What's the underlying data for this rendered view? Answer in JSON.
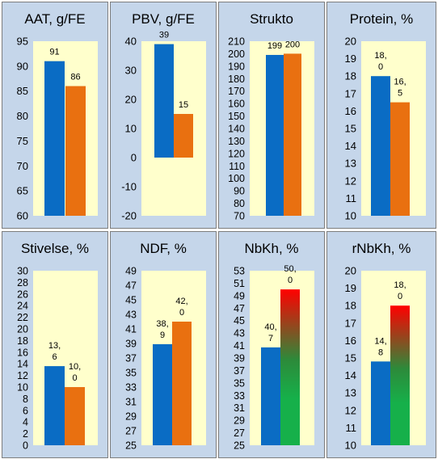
{
  "colors": {
    "panel_bg": "#c5d6ea",
    "plot_bg": "#ffffcc",
    "blue": "#0a6cc4",
    "orange": "#e97010",
    "grad_top": "#ff0000",
    "grad_mid": "#2d8a3a",
    "grad_bottom": "#16b04a"
  },
  "chart_data": [
    {
      "type": "bar",
      "title": "AAT, g/FE",
      "ylim": [
        60,
        95
      ],
      "step": 5,
      "ticks": [
        "60",
        "65",
        "70",
        "75",
        "80",
        "85",
        "90",
        "95"
      ],
      "values": [
        91,
        86
      ],
      "labels": [
        "91",
        "86"
      ]
    },
    {
      "type": "bar",
      "title": "PBV, g/FE",
      "ylim": [
        -20,
        40
      ],
      "step": 10,
      "ticks": [
        "-20",
        "-10",
        "0",
        "10",
        "20",
        "30",
        "40"
      ],
      "values": [
        39,
        15
      ],
      "labels": [
        "39",
        "15"
      ]
    },
    {
      "type": "bar",
      "title": "Strukto",
      "ylim": [
        70,
        210
      ],
      "step": 10,
      "ticks": [
        "70",
        "80",
        "90",
        "100",
        "110",
        "120",
        "130",
        "140",
        "150",
        "160",
        "170",
        "180",
        "190",
        "200",
        "210"
      ],
      "values": [
        199,
        200
      ],
      "labels": [
        "199",
        "200"
      ]
    },
    {
      "type": "bar",
      "title": "Protein, %",
      "ylim": [
        10,
        20
      ],
      "step": 1,
      "ticks": [
        "10",
        "11",
        "12",
        "13",
        "14",
        "15",
        "16",
        "17",
        "18",
        "19",
        "20"
      ],
      "values": [
        18.0,
        16.5
      ],
      "labels": [
        "18,\n0",
        "16,\n5"
      ]
    },
    {
      "type": "bar",
      "title": "Stivelse, %",
      "ylim": [
        0,
        30
      ],
      "step": 2,
      "ticks": [
        "0",
        "2",
        "4",
        "6",
        "8",
        "10",
        "12",
        "14",
        "16",
        "18",
        "20",
        "22",
        "24",
        "26",
        "28",
        "30"
      ],
      "values": [
        13.6,
        10.0
      ],
      "labels": [
        "13,\n6",
        "10,\n0"
      ]
    },
    {
      "type": "bar",
      "title": "NDF, %",
      "ylim": [
        25,
        49
      ],
      "step": 2,
      "ticks": [
        "25",
        "27",
        "29",
        "31",
        "33",
        "35",
        "37",
        "39",
        "41",
        "43",
        "45",
        "47",
        "49"
      ],
      "values": [
        38.9,
        42.0
      ],
      "labels": [
        "38,\n9",
        "42,\n0"
      ]
    },
    {
      "type": "bar",
      "title": "NbKh, %",
      "ylim": [
        25,
        53
      ],
      "step": 2,
      "gradient_second": true,
      "ticks": [
        "25",
        "27",
        "29",
        "31",
        "33",
        "35",
        "37",
        "39",
        "41",
        "43",
        "45",
        "47",
        "49",
        "51",
        "53"
      ],
      "values": [
        40.7,
        50.0
      ],
      "labels": [
        "40,\n7",
        "50,\n0"
      ]
    },
    {
      "type": "bar",
      "title": "rNbKh, %",
      "ylim": [
        10,
        20
      ],
      "step": 1,
      "gradient_second": true,
      "ticks": [
        "10",
        "11",
        "12",
        "13",
        "14",
        "15",
        "16",
        "17",
        "18",
        "19",
        "20"
      ],
      "values": [
        14.8,
        18.0
      ],
      "labels": [
        "14,\n8",
        "18,\n0"
      ]
    }
  ]
}
